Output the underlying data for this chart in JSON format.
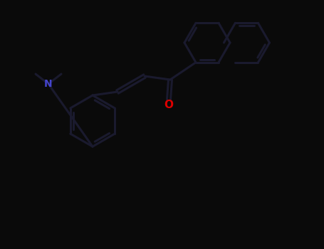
{
  "bg_color": "#0a0a0a",
  "bond_color": "#1a1a2e",
  "N_color": "#3333aa",
  "O_color": "#cc0000",
  "line_width": 2.2,
  "fig_width": 4.55,
  "fig_height": 3.5,
  "dpi": 100,
  "bond_dark": "#111133",
  "N_text_color": "#4444cc",
  "O_text_color": "#dd0000"
}
